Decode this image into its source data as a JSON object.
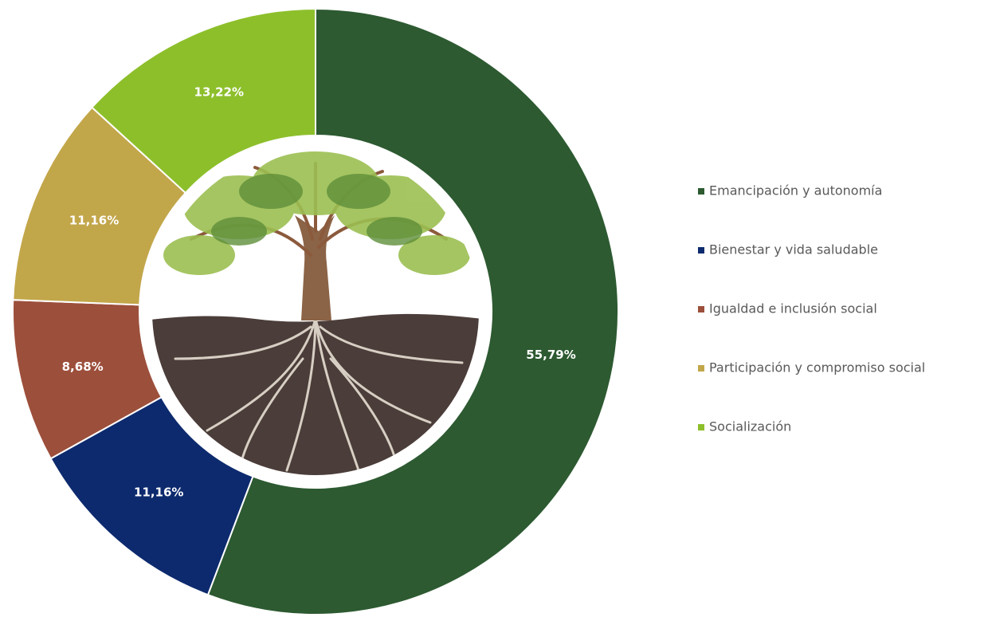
{
  "chart_data": {
    "type": "donut",
    "categories": [
      "Emancipación y autonomía",
      "Bienestar y vida saludable",
      "Igualdad e inclusión social",
      "Participación y compromiso social",
      "Socialización"
    ],
    "values": [
      55.79,
      11.16,
      8.68,
      11.16,
      13.22
    ],
    "value_labels": [
      "55,79%",
      "11,16%",
      "8,68%",
      "11,16%",
      "13,22%"
    ],
    "colors": [
      "#2d5a31",
      "#0d2a6e",
      "#9c4f3b",
      "#c2a64a",
      "#8dbf2b"
    ],
    "legend": "right"
  }
}
